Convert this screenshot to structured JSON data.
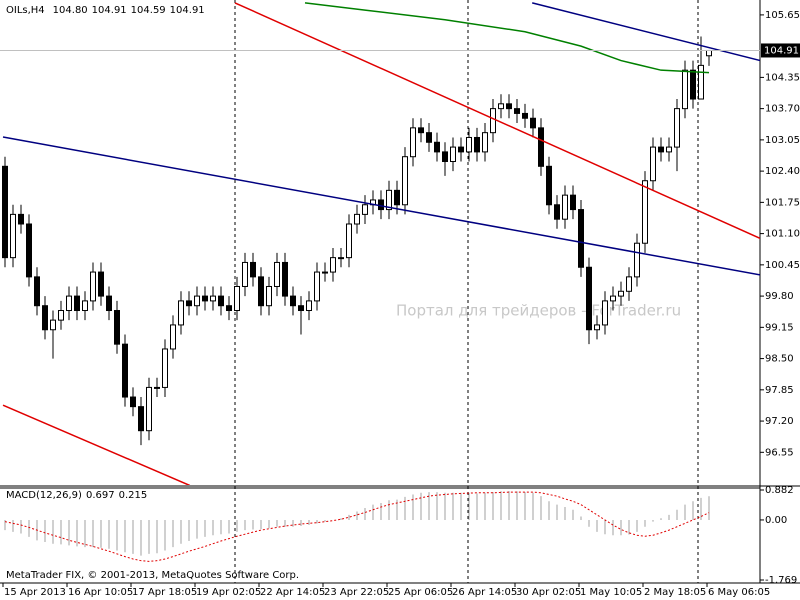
{
  "chart_data": [
    {
      "type": "candlestick",
      "title": "OILs,H4",
      "last_labels": [
        "104.80",
        "104.91",
        "104.59",
        "104.91"
      ],
      "watermark": "Портал для трейдеров - ForTrader.ru",
      "up_color": "#ffffff",
      "down_color": "#000000",
      "open": [
        102.5,
        100.6,
        101.5,
        101.3,
        100.2,
        99.6,
        99.1,
        99.3,
        99.5,
        99.8,
        99.5,
        99.7,
        100.3,
        99.8,
        99.5,
        98.8,
        97.7,
        97.5,
        97.0,
        97.9,
        97.9,
        98.7,
        99.2,
        99.7,
        99.6,
        99.8,
        99.7,
        99.8,
        99.6,
        99.5,
        100.0,
        100.5,
        100.2,
        99.6,
        100.0,
        100.5,
        99.8,
        99.6,
        99.5,
        99.7,
        100.3,
        100.3,
        100.6,
        100.6,
        101.3,
        101.5,
        101.7,
        101.8,
        101.6,
        102.0,
        101.7,
        102.7,
        103.3,
        103.2,
        103.0,
        102.8,
        102.6,
        102.9,
        102.8,
        103.1,
        102.8,
        103.2,
        103.7,
        103.8,
        103.7,
        103.6,
        103.5,
        103.3,
        102.5,
        101.7,
        101.4,
        101.9,
        101.6,
        100.4,
        99.1,
        99.2,
        99.7,
        99.8,
        99.9,
        100.2,
        100.9,
        102.2,
        102.9,
        102.8,
        102.9,
        103.7,
        104.5,
        103.9,
        104.8
      ],
      "high": [
        102.7,
        101.7,
        101.7,
        101.5,
        100.4,
        99.8,
        99.5,
        99.7,
        100.0,
        100.0,
        99.9,
        100.5,
        100.5,
        100.0,
        99.7,
        99.0,
        97.9,
        97.7,
        98.1,
        98.1,
        98.9,
        99.4,
        99.9,
        99.9,
        100.0,
        100.0,
        100.0,
        100.0,
        99.8,
        100.2,
        100.7,
        100.7,
        100.4,
        100.2,
        100.7,
        100.7,
        100.0,
        99.8,
        99.9,
        100.5,
        100.5,
        100.8,
        100.8,
        101.5,
        101.7,
        101.9,
        102.0,
        102.0,
        102.2,
        102.2,
        102.9,
        103.5,
        103.5,
        103.4,
        103.2,
        103.0,
        103.1,
        103.1,
        103.3,
        103.3,
        103.4,
        103.9,
        104.0,
        104.0,
        103.9,
        103.8,
        103.7,
        103.5,
        102.7,
        101.9,
        102.1,
        102.1,
        101.8,
        100.6,
        99.4,
        99.9,
        100.0,
        100.1,
        100.4,
        101.1,
        102.4,
        103.1,
        103.1,
        103.1,
        103.9,
        104.7,
        104.7,
        105.2,
        104.91
      ],
      "low": [
        100.4,
        100.4,
        101.1,
        100.0,
        99.4,
        98.9,
        98.5,
        99.1,
        99.3,
        99.3,
        99.3,
        99.5,
        99.6,
        99.3,
        98.6,
        97.5,
        97.3,
        96.7,
        96.8,
        97.7,
        97.7,
        98.5,
        99.0,
        99.4,
        99.4,
        99.5,
        99.5,
        99.4,
        99.3,
        99.3,
        99.8,
        100.0,
        99.4,
        99.4,
        99.8,
        99.6,
        99.4,
        99.0,
        99.3,
        99.5,
        100.1,
        100.1,
        100.4,
        100.4,
        101.1,
        101.3,
        101.5,
        101.4,
        101.4,
        101.5,
        101.5,
        102.5,
        103.0,
        102.8,
        102.6,
        102.3,
        102.4,
        102.6,
        102.6,
        102.6,
        102.6,
        103.0,
        103.5,
        103.5,
        103.4,
        103.3,
        103.1,
        102.3,
        101.5,
        101.2,
        101.2,
        101.4,
        100.2,
        98.8,
        98.9,
        99.0,
        99.5,
        99.6,
        99.7,
        100.0,
        100.7,
        102.0,
        102.6,
        102.6,
        102.4,
        103.5,
        103.7,
        103.9,
        104.59
      ],
      "close": [
        100.6,
        101.5,
        101.3,
        100.2,
        99.6,
        99.1,
        99.3,
        99.5,
        99.8,
        99.5,
        99.7,
        100.3,
        99.8,
        99.5,
        98.8,
        97.7,
        97.5,
        97.0,
        97.9,
        97.9,
        98.7,
        99.2,
        99.7,
        99.6,
        99.8,
        99.7,
        99.8,
        99.6,
        99.5,
        100.0,
        100.5,
        100.2,
        99.6,
        100.0,
        100.5,
        99.8,
        99.6,
        99.5,
        99.7,
        100.3,
        100.3,
        100.6,
        100.6,
        101.3,
        101.5,
        101.7,
        101.8,
        101.6,
        102.0,
        101.7,
        102.7,
        103.3,
        103.2,
        103.0,
        102.8,
        102.6,
        102.9,
        102.8,
        103.1,
        102.8,
        103.2,
        103.7,
        103.8,
        103.7,
        103.6,
        103.5,
        103.3,
        102.5,
        101.7,
        101.4,
        101.9,
        101.6,
        100.4,
        99.1,
        99.2,
        99.7,
        99.8,
        99.9,
        100.2,
        100.9,
        102.2,
        102.9,
        102.8,
        102.9,
        103.7,
        104.5,
        103.9,
        104.6,
        104.91
      ],
      "lines": [
        {
          "color": "#e00000",
          "x": [
            28.75,
            94.4
          ],
          "values": [
            105.9,
            101.0
          ]
        },
        {
          "color": "#e00000",
          "x": [
            -0.25,
            23.1
          ],
          "values": [
            97.53,
            95.86
          ]
        },
        {
          "color": "#000080",
          "x": [
            65.9,
            94.4
          ],
          "values": [
            105.9,
            104.7
          ]
        },
        {
          "color": "#000080",
          "x": [
            -0.25,
            94.4
          ],
          "values": [
            103.11,
            100.24
          ]
        },
        {
          "color": "#008000",
          "x": [
            37.5,
            45,
            55,
            65,
            72,
            77,
            82,
            88
          ],
          "values": [
            105.9,
            105.75,
            105.55,
            105.3,
            105.0,
            104.7,
            104.5,
            104.45
          ]
        }
      ],
      "price_line": 104.91,
      "ylim": [
        95.87,
        105.96
      ],
      "yticks": [
        105.65,
        104.35,
        {
          "value": 103.7,
          "label": "103.70"
        },
        103.05,
        {
          "value": 102.4,
          "label": "102.40"
        },
        101.75,
        {
          "value": 101.1,
          "label": "101.10"
        },
        100.45,
        {
          "value": 99.8,
          "label": "99.80"
        },
        99.15,
        {
          "value": 98.5,
          "label": "98.50"
        },
        97.85,
        {
          "value": 97.2,
          "label": "97.20"
        },
        96.55
      ],
      "xticks": [
        {
          "value": 0,
          "label": "15 Apr 2013"
        },
        {
          "value": 8,
          "label": "16 Apr 10:05"
        },
        {
          "value": 16,
          "label": "17 Apr 18:05"
        },
        {
          "value": 24,
          "label": "19 Apr 02:05"
        },
        {
          "value": 32,
          "label": "22 Apr 14:05"
        },
        {
          "value": 40,
          "label": "23 Apr 22:05"
        },
        {
          "value": 48,
          "label": "25 Apr 06:05"
        },
        {
          "value": 56,
          "label": "26 Apr 14:05"
        },
        {
          "value": 64,
          "label": "30 Apr 02:05"
        },
        {
          "value": 72,
          "label": "1 May 10:05"
        },
        {
          "value": 80,
          "label": "2 May 18:05"
        },
        {
          "value": 88,
          "label": "6 May 06:05"
        }
      ]
    },
    {
      "type": "macd",
      "title": "MACD(12,26,9)",
      "footer": "MetaTrader FIX, © 2001-2013, MetaQuotes Software Corp.",
      "series": [
        {
          "color": "#a0a0a0",
          "values": [
            -0.3,
            -0.35,
            -0.4,
            -0.5,
            -0.6,
            -0.65,
            -0.7,
            -0.72,
            -0.75,
            -0.78,
            -0.8,
            -0.8,
            -0.82,
            -0.85,
            -0.9,
            -0.95,
            -1.0,
            -1.05,
            -1.0,
            -0.98,
            -0.9,
            -0.8,
            -0.7,
            -0.62,
            -0.55,
            -0.5,
            -0.45,
            -0.42,
            -0.4,
            -0.35,
            -0.3,
            -0.28,
            -0.27,
            -0.25,
            -0.2,
            -0.2,
            -0.2,
            -0.18,
            -0.15,
            -0.1,
            -0.05,
            0.0,
            0.05,
            0.15,
            0.25,
            0.35,
            0.45,
            0.5,
            0.58,
            0.6,
            0.68,
            0.75,
            0.8,
            0.82,
            0.82,
            0.8,
            0.8,
            0.8,
            0.8,
            0.78,
            0.8,
            0.82,
            0.85,
            0.85,
            0.84,
            0.82,
            0.8,
            0.7,
            0.55,
            0.45,
            0.38,
            0.3,
            0.1,
            -0.2,
            -0.35,
            -0.42,
            -0.45,
            -0.45,
            -0.43,
            -0.35,
            -0.2,
            -0.05,
            0.05,
            0.15,
            0.3,
            0.45,
            0.55,
            0.65,
            0.697
          ]
        },
        {
          "color": "#e00000",
          "values": [
            -0.05,
            -0.1,
            -0.15,
            -0.22,
            -0.3,
            -0.38,
            -0.45,
            -0.52,
            -0.6,
            -0.66,
            -0.72,
            -0.78,
            -0.85,
            -0.92,
            -1.0,
            -1.08,
            -1.15,
            -1.2,
            -1.22,
            -1.2,
            -1.15,
            -1.08,
            -1.0,
            -0.92,
            -0.85,
            -0.78,
            -0.7,
            -0.62,
            -0.55,
            -0.48,
            -0.42,
            -0.36,
            -0.3,
            -0.26,
            -0.22,
            -0.18,
            -0.15,
            -0.12,
            -0.1,
            -0.08,
            -0.05,
            -0.02,
            0.02,
            0.08,
            0.15,
            0.22,
            0.3,
            0.38,
            0.45,
            0.5,
            0.55,
            0.6,
            0.65,
            0.7,
            0.73,
            0.75,
            0.77,
            0.78,
            0.79,
            0.8,
            0.8,
            0.8,
            0.81,
            0.82,
            0.82,
            0.82,
            0.82,
            0.8,
            0.75,
            0.7,
            0.62,
            0.55,
            0.45,
            0.3,
            0.15,
            0.0,
            -0.15,
            -0.28,
            -0.38,
            -0.45,
            -0.48,
            -0.45,
            -0.38,
            -0.3,
            -0.2,
            -0.1,
            0.0,
            0.1,
            0.215
          ]
        }
      ],
      "ylim": [
        -1.769,
        0.882
      ],
      "yticks": [
        0.882,
        {
          "value": 0,
          "label": "0.00"
        },
        -1.769
      ]
    }
  ]
}
